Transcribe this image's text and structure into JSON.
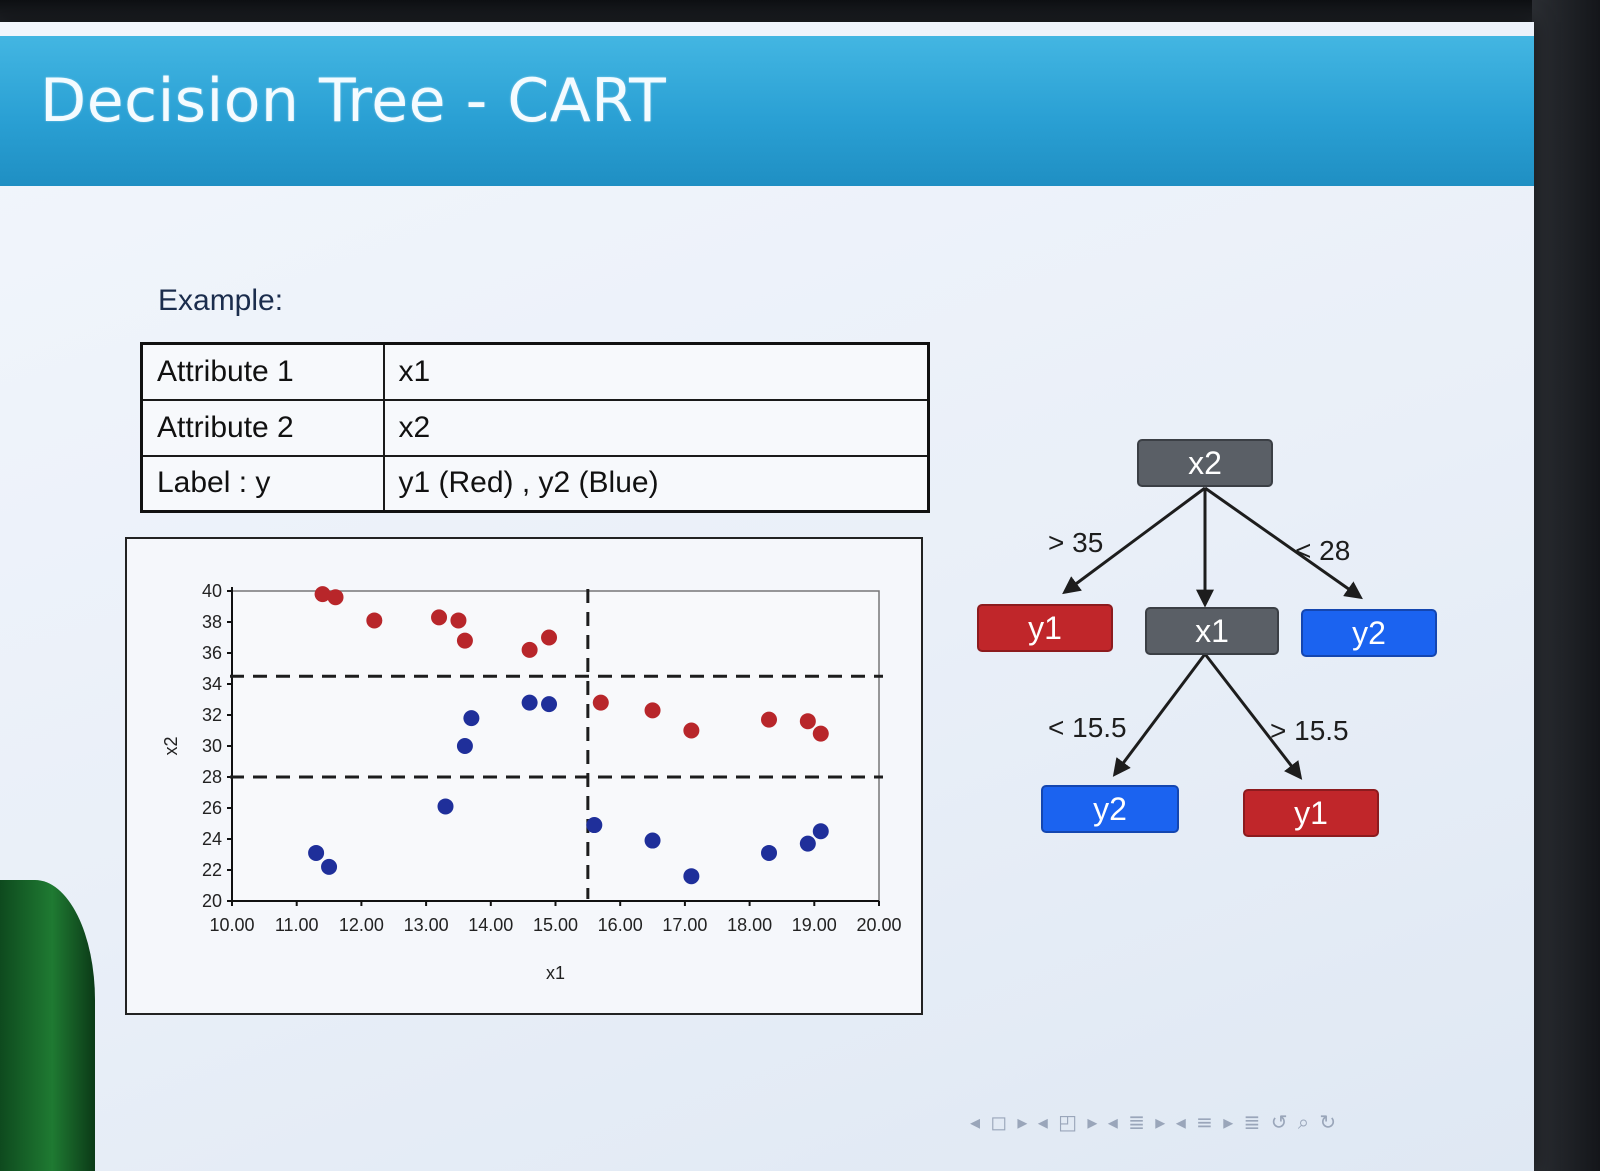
{
  "slide": {
    "title": "Decision Tree - CART",
    "example_label": "Example:",
    "table": [
      {
        "key": "Attribute 1",
        "value": "x1"
      },
      {
        "key": "Attribute 2",
        "value": "x2"
      },
      {
        "key": "Label : y",
        "value": "y1 (Red) , y2 (Blue)"
      }
    ],
    "nav_icons": "◂ ◻ ▸ ◂ ◰ ▸ ◂ ≣ ▸ ◂ ≡ ▸  ≣  ↺ ⌕ ↻"
  },
  "colors": {
    "red": "#b8262a",
    "blue": "#1f2f9a",
    "node_gray": "#5a5f66",
    "node_red": "#c0262a",
    "node_blue": "#1b63f0"
  },
  "chart_data": {
    "type": "scatter",
    "xlabel": "x1",
    "ylabel": "x2",
    "xlim": [
      10,
      20
    ],
    "ylim": [
      20,
      40
    ],
    "x_ticks": [
      "10.00",
      "11.00",
      "12.00",
      "13.00",
      "14.00",
      "15.00",
      "16.00",
      "17.00",
      "18.00",
      "19.00",
      "20.00"
    ],
    "y_ticks": [
      "20",
      "22",
      "24",
      "26",
      "28",
      "30",
      "32",
      "34",
      "36",
      "38",
      "40"
    ],
    "split_lines": {
      "x2": [
        34.5,
        28
      ],
      "x1": [
        15.5
      ]
    },
    "series": [
      {
        "name": "y1",
        "color": "#b8262a",
        "points": [
          [
            11.4,
            39.8
          ],
          [
            11.6,
            39.6
          ],
          [
            12.2,
            38.1
          ],
          [
            13.2,
            38.3
          ],
          [
            13.5,
            38.1
          ],
          [
            13.6,
            36.8
          ],
          [
            14.6,
            36.2
          ],
          [
            14.9,
            37.0
          ],
          [
            15.7,
            32.8
          ],
          [
            16.5,
            32.3
          ],
          [
            17.1,
            31.0
          ],
          [
            18.3,
            31.7
          ],
          [
            18.9,
            31.6
          ],
          [
            19.1,
            30.8
          ]
        ]
      },
      {
        "name": "y2",
        "color": "#1f2f9a",
        "points": [
          [
            11.3,
            23.1
          ],
          [
            11.5,
            22.2
          ],
          [
            13.3,
            26.1
          ],
          [
            13.6,
            30.0
          ],
          [
            13.7,
            31.8
          ],
          [
            14.6,
            32.8
          ],
          [
            14.9,
            32.7
          ],
          [
            15.6,
            24.9
          ],
          [
            16.5,
            23.9
          ],
          [
            17.1,
            21.6
          ],
          [
            18.3,
            23.1
          ],
          [
            18.9,
            23.7
          ],
          [
            19.1,
            24.5
          ]
        ]
      }
    ]
  },
  "tree": {
    "root": {
      "label": "x2"
    },
    "left_leaf": {
      "label": "y1",
      "edge": "> 35"
    },
    "mid_node": {
      "label": "x1"
    },
    "right_leaf": {
      "label": "y2",
      "edge": "< 28"
    },
    "mid_left_leaf": {
      "label": "y2",
      "edge": "< 15.5"
    },
    "mid_right_leaf": {
      "label": "y1",
      "edge": "> 15.5"
    }
  }
}
